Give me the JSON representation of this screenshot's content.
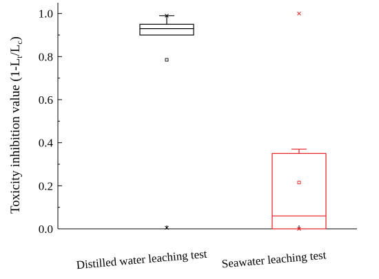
{
  "chart_data": {
    "type": "box",
    "ylabel": {
      "main": "Toxicity inhibition value (1-L",
      "sub1": "t",
      "mid": "/L",
      "sub2": "c",
      "end": ")"
    },
    "xlabel": "",
    "ylim": [
      0.0,
      1.05
    ],
    "yticks": [
      "0.0",
      "0.2",
      "0.4",
      "0.6",
      "0.8",
      "1.0"
    ],
    "yticks_values": [
      0.0,
      0.2,
      0.4,
      0.6,
      0.8,
      1.0
    ],
    "grid": false,
    "legend": "none",
    "categories": [
      "Distilled water leaching test",
      "Seawater leaching test"
    ],
    "boxes": [
      {
        "category": "Distilled water leaching test",
        "color": "#000000",
        "whisker_low": 0.9,
        "q1": 0.9,
        "median": 0.93,
        "q3": 0.95,
        "whisker_high": 0.99,
        "mean": 0.785,
        "min_marker": 0.005,
        "max_marker": 0.99
      },
      {
        "category": "Seawater leaching test",
        "color": "#e41a1c",
        "whisker_low": 0.0,
        "q1": 0.0,
        "median": 0.06,
        "q3": 0.35,
        "whisker_high": 0.37,
        "mean": 0.215,
        "min_marker": 0.0,
        "max_marker": 1.0
      }
    ]
  }
}
